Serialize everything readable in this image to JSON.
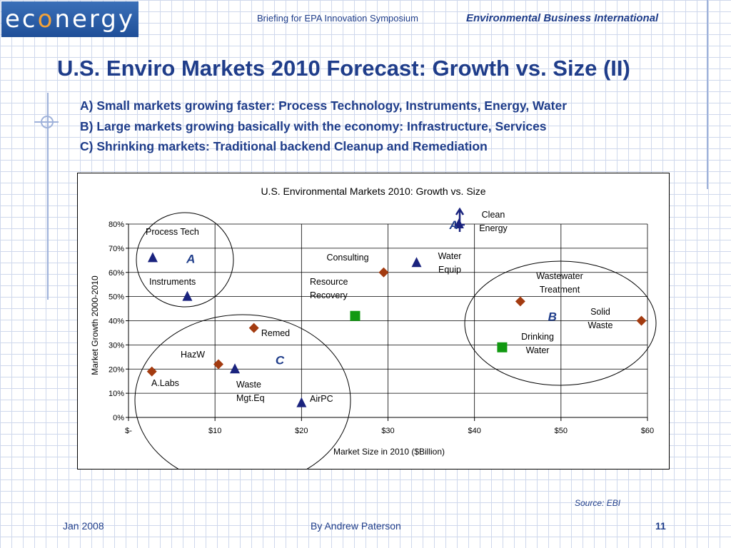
{
  "header": {
    "logo_parts": [
      "ec",
      "o",
      "nergy"
    ],
    "center_text": "Briefing for EPA Innovation Symposium",
    "right_text": "Environmental Business International"
  },
  "slide": {
    "title": "U.S. Enviro Markets 2010 Forecast: Growth vs. Size (II)",
    "bullets": [
      "A) Small markets growing faster: Process Technology, Instruments, Energy, Water",
      "B) Large markets growing basically with the economy: Infrastructure, Services",
      "C) Shrinking markets: Traditional backend Cleanup and Remediation"
    ],
    "source": "Source: EBI"
  },
  "footer": {
    "date": "Jan 2008",
    "author": "By Andrew Paterson",
    "page": "11"
  },
  "colors": {
    "brand_blue": "#1f3d8a",
    "diamond": "#a33b10",
    "triangle": "#1a237e",
    "square": "#119911"
  },
  "chart_data": {
    "type": "scatter",
    "title": "U.S. Environmental Markets 2010:  Growth vs. Size",
    "xlabel": "Market Size in 2010 ($Billion)",
    "ylabel": "Market Growth 2000-2010",
    "xlim": [
      0,
      60
    ],
    "ylim": [
      0,
      0.8
    ],
    "x_ticks": [
      {
        "value": 0,
        "label": "$-"
      },
      {
        "value": 10,
        "label": "$10"
      },
      {
        "value": 20,
        "label": "$20"
      },
      {
        "value": 30,
        "label": "$30"
      },
      {
        "value": 40,
        "label": "$40"
      },
      {
        "value": 50,
        "label": "$50"
      },
      {
        "value": 60,
        "label": "$60"
      }
    ],
    "y_ticks": [
      {
        "value": 0,
        "label": "0%"
      },
      {
        "value": 0.1,
        "label": "10%"
      },
      {
        "value": 0.2,
        "label": "20%"
      },
      {
        "value": 0.3,
        "label": "30%"
      },
      {
        "value": 0.4,
        "label": "40%"
      },
      {
        "value": 0.5,
        "label": "50%"
      },
      {
        "value": 0.6,
        "label": "60%"
      },
      {
        "value": 0.7,
        "label": "70%"
      },
      {
        "value": 0.8,
        "label": "80%"
      }
    ],
    "grid": "horizontal and vertical",
    "points": [
      {
        "label": "Process Tech",
        "marker": "triangle",
        "x": 2.8,
        "y": 0.66
      },
      {
        "label": "Instruments",
        "marker": "triangle",
        "x": 6.8,
        "y": 0.5
      },
      {
        "label": "Clean Energy",
        "marker": "triangle",
        "x": 38.2,
        "y": 0.8
      },
      {
        "label": "Water Equip",
        "marker": "triangle",
        "x": 33.3,
        "y": 0.64
      },
      {
        "label": "Consulting",
        "marker": "diamond",
        "x": 29.5,
        "y": 0.6
      },
      {
        "label": "Resource Recovery",
        "marker": "square",
        "x": 26.2,
        "y": 0.42
      },
      {
        "label": "Wastewater Treatment",
        "marker": "diamond",
        "x": 45.3,
        "y": 0.48
      },
      {
        "label": "Solid Waste",
        "marker": "diamond",
        "x": 59.3,
        "y": 0.4
      },
      {
        "label": "Drinking Water",
        "marker": "square",
        "x": 43.2,
        "y": 0.29
      },
      {
        "label": "Remed",
        "marker": "diamond",
        "x": 14.5,
        "y": 0.37
      },
      {
        "label": "HazW",
        "marker": "diamond",
        "x": 10.4,
        "y": 0.22
      },
      {
        "label": "A.Labs",
        "marker": "diamond",
        "x": 2.7,
        "y": 0.19
      },
      {
        "label": "Waste Mgt.Eq",
        "marker": "triangle",
        "x": 12.3,
        "y": 0.2
      },
      {
        "label": "AirPC",
        "marker": "triangle",
        "x": 20.0,
        "y": 0.06
      }
    ],
    "annotations": [
      {
        "text": "A",
        "x": 7.2,
        "y": 0.66
      },
      {
        "text": "A",
        "x": 37.6,
        "y": 0.8
      },
      {
        "text": "B",
        "x": 49.0,
        "y": 0.42
      },
      {
        "text": "C",
        "x": 17.5,
        "y": 0.24
      }
    ]
  }
}
